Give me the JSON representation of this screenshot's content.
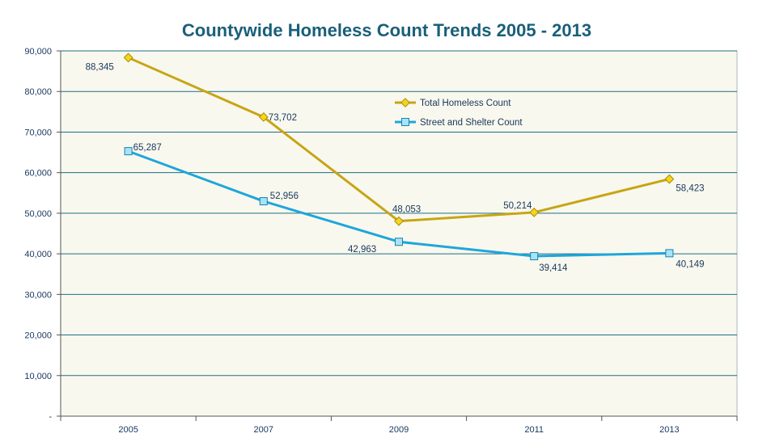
{
  "chart_data": {
    "type": "line",
    "title": "Countywide Homeless Count Trends 2005 - 2013",
    "categories": [
      "2005",
      "2007",
      "2009",
      "2011",
      "2013"
    ],
    "ylim": [
      0,
      90000
    ],
    "yticks": [
      0,
      10000,
      20000,
      30000,
      40000,
      50000,
      60000,
      70000,
      80000,
      90000
    ],
    "ytick_labels": [
      "-",
      "10,000",
      "20,000",
      "30,000",
      "40,000",
      "50,000",
      "60,000",
      "70,000",
      "80,000",
      "90,000"
    ],
    "grid": true,
    "legend_position": "upper-center-right",
    "plot_background": "#f9f8ee",
    "gridline_color": "#1f6f86",
    "series": [
      {
        "name": "Total Homeless Count",
        "values": [
          88345,
          73702,
          48053,
          50214,
          58423
        ],
        "labels": [
          "88,345",
          "73,702",
          "48,053",
          "50,214",
          "58,423"
        ],
        "color": "#c7a514",
        "marker": "diamond",
        "marker_fill": "#f5d51c"
      },
      {
        "name": "Street and Shelter Count",
        "values": [
          65287,
          52956,
          42963,
          39414,
          40149
        ],
        "labels": [
          "65,287",
          "52,956",
          "42,963",
          "39,414",
          "40,149"
        ],
        "color": "#1ea6dc",
        "marker": "square",
        "marker_fill": "#a8e3f7"
      }
    ]
  }
}
